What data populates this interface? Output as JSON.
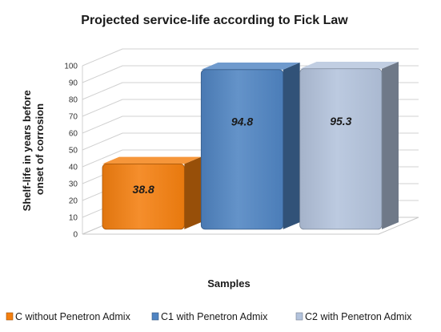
{
  "chart_data": {
    "type": "bar",
    "title": "Projected service-life according to Fick Law",
    "xlabel": "Samples",
    "ylabel": "Shelf-life in years before onset of corrosion",
    "ylabel_lines": [
      "Shelf-life in years before",
      "onset of corrosion"
    ],
    "ylim": [
      0,
      100
    ],
    "yticks": [
      0,
      10,
      20,
      30,
      40,
      50,
      60,
      70,
      80,
      90,
      100
    ],
    "grid": true,
    "legend_position": "bottom",
    "three_d": true,
    "series": [
      {
        "name": "C without Penetron Admix",
        "value": 38.8,
        "label": "38.8",
        "color": "#f47f0f"
      },
      {
        "name": "C1 with Penetron Admix",
        "value": 94.8,
        "label": "94.8",
        "color": "#4f84c2"
      },
      {
        "name": "C2 with Penetron Admix",
        "value": 95.3,
        "label": "95.3",
        "color": "#b3c3dc"
      }
    ]
  }
}
